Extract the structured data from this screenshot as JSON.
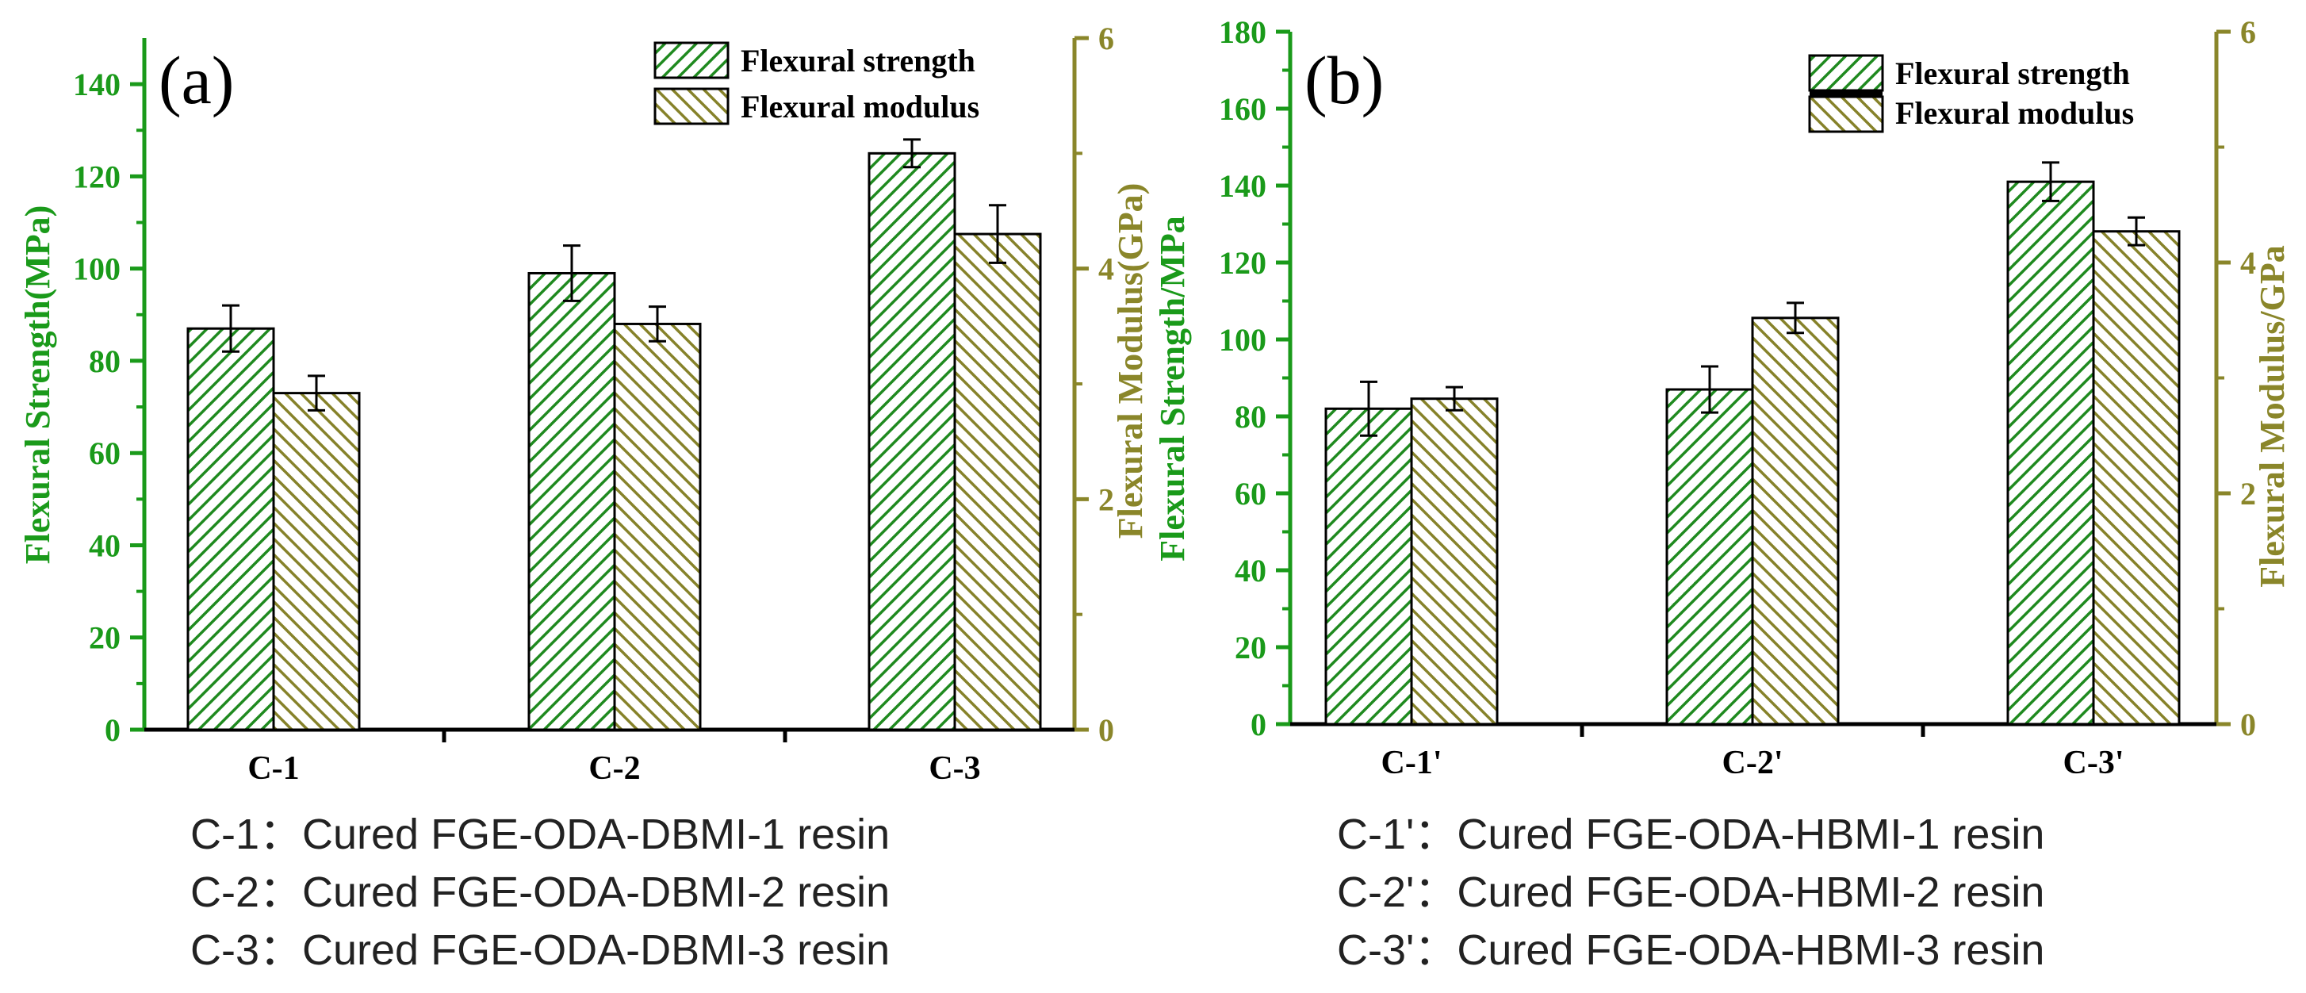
{
  "colors": {
    "strength": "#1f8a1f",
    "modulus": "#86822a",
    "strength_axis": "#1a9a1a",
    "modulus_axis": "#8a862a",
    "axis": "#000000",
    "caption": "#222222"
  },
  "chart_data": [
    {
      "type": "bar",
      "panel_label": "(a)",
      "categories": [
        "C-1",
        "C-2",
        "C-3"
      ],
      "ylabel": "Flexural Strength(MPa)",
      "y2label": "Flexural Modulus(GPa)",
      "ylim": [
        0,
        150
      ],
      "yticks": [
        0,
        20,
        40,
        60,
        80,
        100,
        120,
        140
      ],
      "y2lim": [
        0,
        6
      ],
      "y2ticks": [
        0,
        2,
        4,
        6
      ],
      "legend": {
        "placement": "top-right",
        "entries": [
          "Flexural strength",
          "Flexural modulus"
        ]
      },
      "series": [
        {
          "name": "Flexural strength",
          "axis": "left",
          "values": [
            87,
            99,
            125
          ],
          "errors": [
            5,
            6,
            3
          ]
        },
        {
          "name": "Flexural modulus",
          "axis": "right",
          "values": [
            2.92,
            3.52,
            4.3
          ],
          "errors": [
            0.15,
            0.15,
            0.25
          ]
        }
      ],
      "captions": [
        "C-1：Cured FGE-ODA-DBMI-1 resin",
        "C-2：Cured FGE-ODA-DBMI-2 resin",
        "C-3：Cured FGE-ODA-DBMI-3 resin"
      ]
    },
    {
      "type": "bar",
      "panel_label": "(b)",
      "categories": [
        "C-1'",
        "C-2'",
        "C-3'"
      ],
      "ylabel": "Flexural Strength/MPa",
      "y2label": "Flexural Modulus/GPa",
      "ylim": [
        0,
        180
      ],
      "yticks": [
        0,
        20,
        40,
        60,
        80,
        100,
        120,
        140,
        160,
        180
      ],
      "y2lim": [
        0,
        6
      ],
      "y2ticks": [
        0,
        2,
        4,
        6
      ],
      "legend": {
        "placement": "top-right",
        "entries": [
          "Flexural strength",
          "Flexural modulus"
        ]
      },
      "series": [
        {
          "name": "Flexural strength",
          "axis": "left",
          "values": [
            82,
            87,
            141
          ],
          "errors": [
            7,
            6,
            5
          ]
        },
        {
          "name": "Flexural modulus",
          "axis": "right",
          "values": [
            2.82,
            3.52,
            4.27
          ],
          "errors": [
            0.1,
            0.13,
            0.12
          ]
        }
      ],
      "captions": [
        "C-1'：Cured FGE-ODA-HBMI-1 resin",
        "C-2'：Cured FGE-ODA-HBMI-2 resin",
        "C-3'：Cured FGE-ODA-HBMI-3 resin"
      ]
    }
  ]
}
